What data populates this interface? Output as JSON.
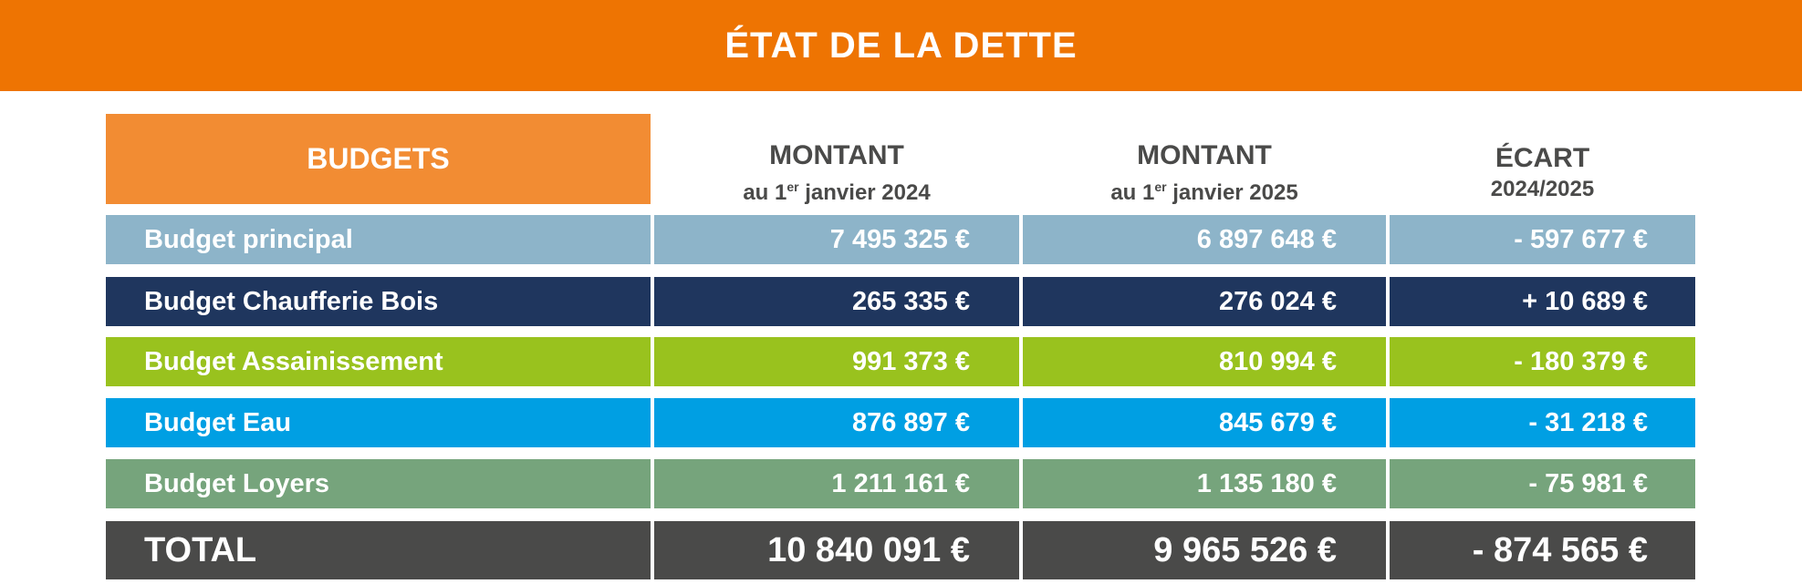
{
  "title": "ÉTAT DE LA DETTE",
  "header": {
    "budgets": "BUDGETS",
    "col1": {
      "line1": "MONTANT",
      "pre": "au 1",
      "sup": "er",
      "post": " janvier 2024"
    },
    "col2": {
      "line1": "MONTANT",
      "pre": "au 1",
      "sup": "er",
      "post": " janvier 2025"
    },
    "col3": {
      "line1": "ÉCART",
      "line2": "2024/2025"
    }
  },
  "rows": [
    {
      "label": "Budget principal",
      "v2024": "7 495 325 €",
      "v2025": "6 897 648 €",
      "ecart": "- 597 677 €",
      "color": "#8DB4C9"
    },
    {
      "label": "Budget Chaufferie Bois",
      "v2024": "265 335 €",
      "v2025": "276 024 €",
      "ecart": "+ 10 689 €",
      "color": "#1F365E"
    },
    {
      "label": "Budget Assainissement",
      "v2024": "991 373 €",
      "v2025": "810 994 €",
      "ecart": "- 180 379 €",
      "color": "#99C21E"
    },
    {
      "label": "Budget Eau",
      "v2024": "876 897 €",
      "v2025": "845 679 €",
      "ecart": "- 31 218 €",
      "color": "#009FE3"
    },
    {
      "label": "Budget Loyers",
      "v2024": "1 211 161 €",
      "v2025": "1 135 180 €",
      "ecart": "- 75 981 €",
      "color": "#76A47C"
    }
  ],
  "total": {
    "label": "TOTAL",
    "v2024": "10 840 091 €",
    "v2025": "9 965 526 €",
    "ecart": "- 874 565 €",
    "color": "#4A4A49"
  },
  "colors": {
    "banner": "#EE7402",
    "budgets_header": "#F28C33",
    "header_text": "#4A4A49"
  }
}
